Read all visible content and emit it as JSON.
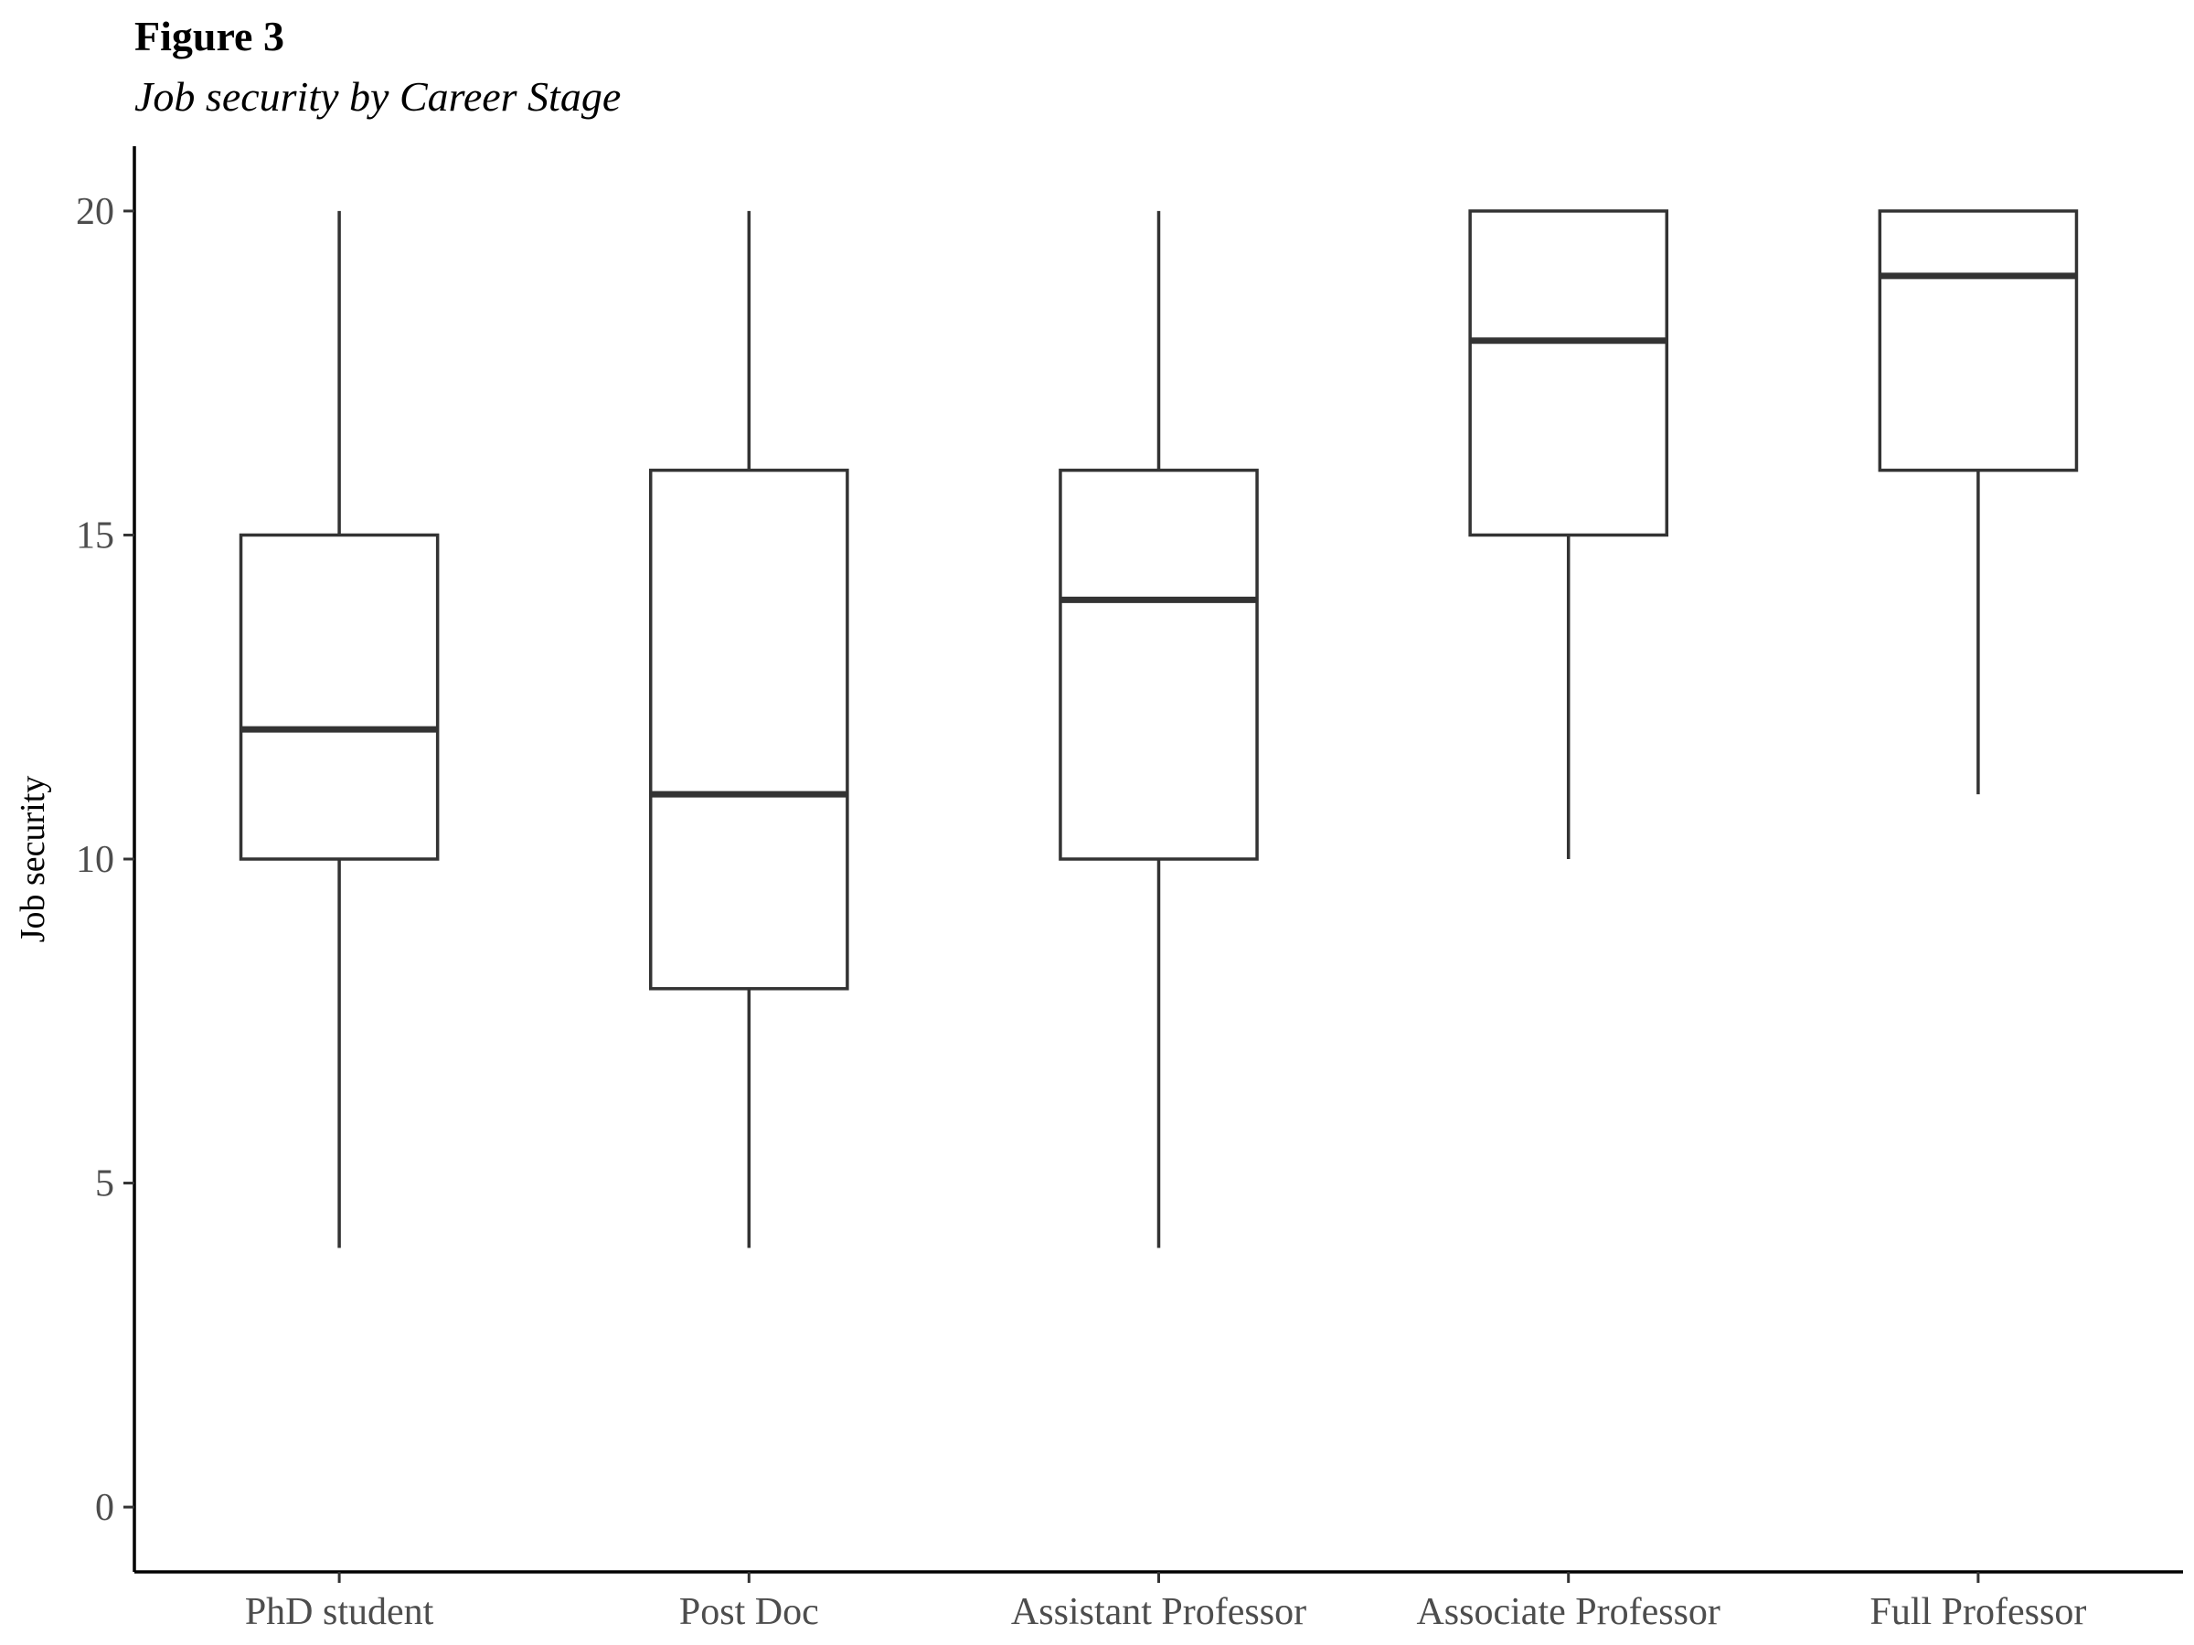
{
  "figure": {
    "label": "Figure 3",
    "title": "Job security by Career Stage"
  },
  "chart_data": {
    "type": "boxplot",
    "title": "Job security by Career Stage",
    "xlabel": "",
    "ylabel": "Job security",
    "ylim": [
      -1,
      21
    ],
    "yticks": [
      0,
      5,
      10,
      15,
      20
    ],
    "grid": false,
    "legend": "none",
    "colors": {
      "box_stroke": "#333333",
      "axis": "#000000",
      "tick_label": "#4d4d4d",
      "fill": "#ffffff"
    },
    "categories": [
      "PhD student",
      "Post Doc",
      "Assistant Professor",
      "Associate Professor",
      "Full Professor"
    ],
    "boxes": [
      {
        "category": "PhD student",
        "whisker_low": 4,
        "q1": 10,
        "median": 12,
        "q3": 15,
        "whisker_high": 20
      },
      {
        "category": "Post Doc",
        "whisker_low": 4,
        "q1": 8,
        "median": 11,
        "q3": 16,
        "whisker_high": 20
      },
      {
        "category": "Assistant Professor",
        "whisker_low": 4,
        "q1": 10,
        "median": 14,
        "q3": 16,
        "whisker_high": 20
      },
      {
        "category": "Associate Professor",
        "whisker_low": 10,
        "q1": 15,
        "median": 18,
        "q3": 20,
        "whisker_high": 20
      },
      {
        "category": "Full Professor",
        "whisker_low": 11,
        "q1": 16,
        "median": 19,
        "q3": 20,
        "whisker_high": 20
      }
    ]
  }
}
